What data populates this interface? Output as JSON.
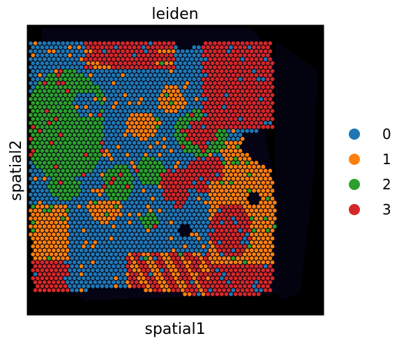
{
  "chart_data": {
    "type": "scatter",
    "title": "leiden",
    "xlabel": "spatial1",
    "ylabel": "spatial2",
    "grid": false,
    "ticks": false,
    "background": "tissue image (dark)",
    "legend_position": "right",
    "legend": [
      {
        "label": "0",
        "color": "#1f77b4"
      },
      {
        "label": "1",
        "color": "#ff7f0e"
      },
      {
        "label": "2",
        "color": "#2ca02c"
      },
      {
        "label": "3",
        "color": "#d62728"
      }
    ],
    "spot_clusters_approx": {
      "green_regions": [
        "left-middle band",
        "upper-left",
        "center-right ring"
      ],
      "red_regions": [
        "upper-right block",
        "top-center",
        "lower-center-right"
      ],
      "orange_regions": [
        "lower-right",
        "lower-left",
        "scattered center"
      ],
      "blue_regions": [
        "background band throughout",
        "lower-left center"
      ]
    }
  }
}
